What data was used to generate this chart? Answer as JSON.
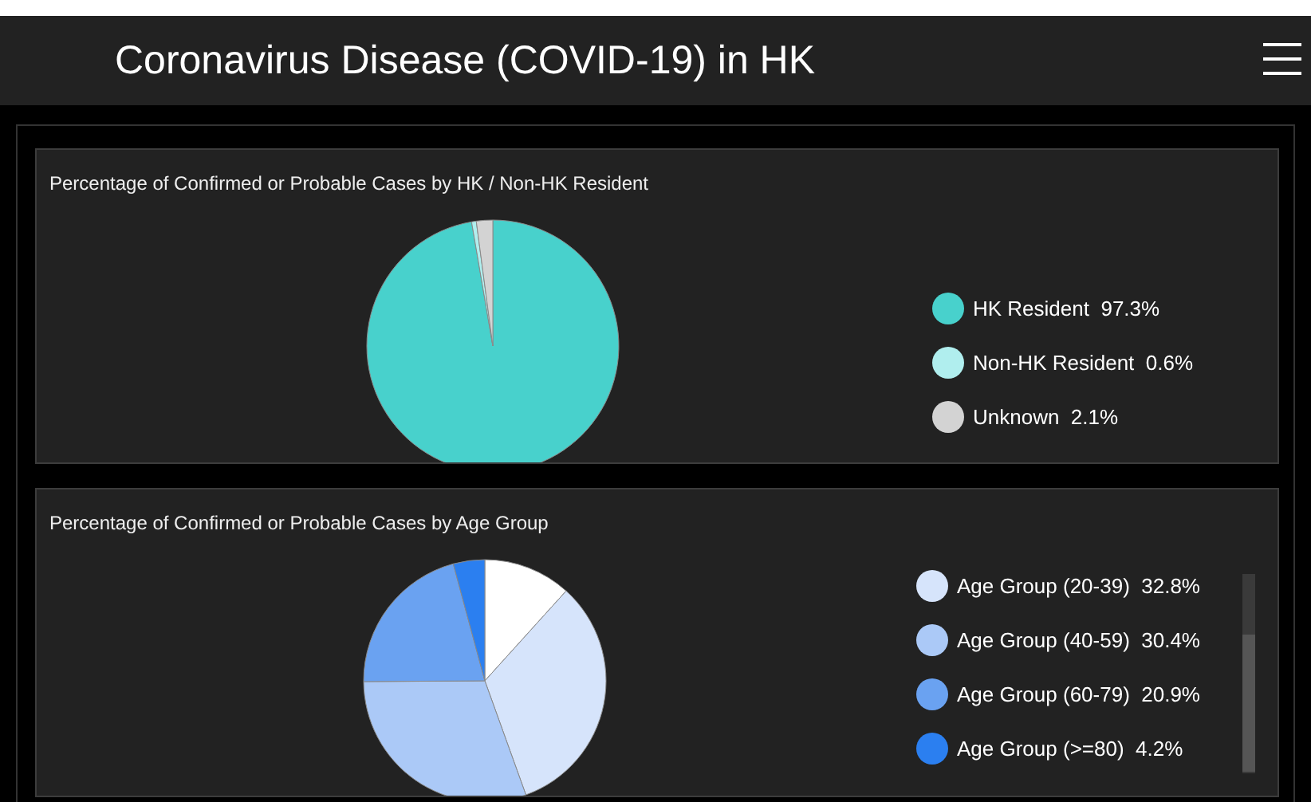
{
  "chart_data": [
    {
      "type": "other",
      "title": "Coronavirus Disease (COVID-19) in HK"
    },
    {
      "type": "pie",
      "title": "Percentage of Confirmed or Probable Cases by HK / Non-HK Resident",
      "categories": [
        "HK Resident",
        "Non-HK Resident",
        "Unknown"
      ],
      "values": [
        97.3,
        0.6,
        2.1
      ],
      "colors": [
        "#48d1cc",
        "#b0eeee",
        "#d3d3d3"
      ],
      "value_labels": [
        "97.3%",
        "0.6%",
        "2.1%"
      ],
      "legend": "right"
    },
    {
      "type": "pie",
      "title": "Percentage of Confirmed or Probable Cases by Age Group",
      "categories": [
        null,
        "Age Group (20-39)",
        "Age Group (40-59)",
        "Age Group (60-79)",
        "Age Group (>=80)"
      ],
      "values": [
        11.7,
        32.8,
        30.4,
        20.9,
        4.2
      ],
      "colors": [
        "#ffffff",
        "#d6e4fb",
        "#abc9f7",
        "#6aa2f1",
        "#2b7ff0"
      ],
      "value_labels": [
        null,
        "32.8%",
        "30.4%",
        "20.9%",
        "4.2%"
      ],
      "legend": "right"
    }
  ]
}
